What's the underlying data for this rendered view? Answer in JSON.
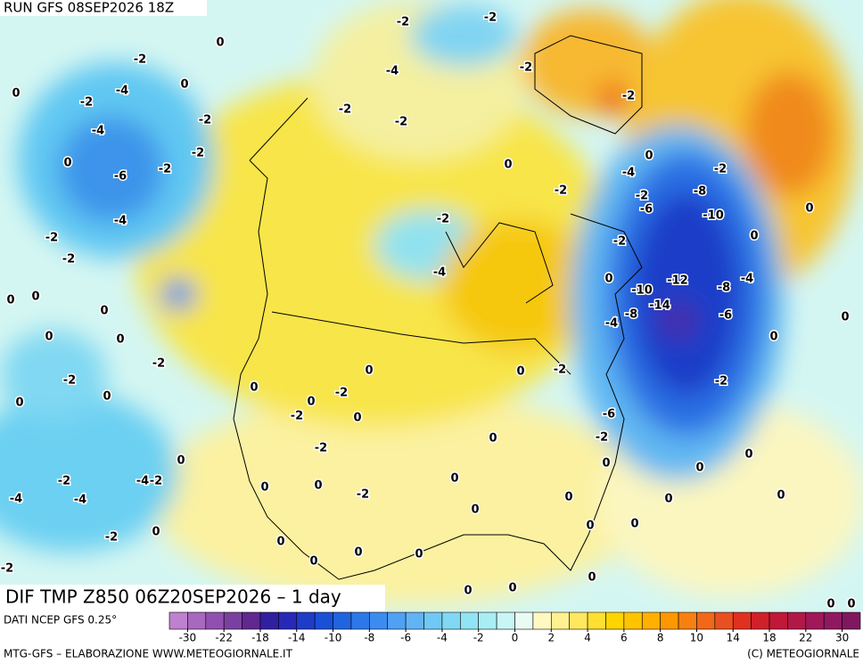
{
  "header": {
    "run": "RUN GFS 08SEP2026 18Z"
  },
  "map": {
    "title": "DIF TMP Z850 06Z20SEP2026 – 1 day",
    "contour_labels": [
      -2,
      -2,
      -2,
      -4,
      0,
      0,
      -2,
      -4,
      0,
      -2,
      -4,
      0,
      -2,
      -6,
      -2,
      -4,
      -2,
      -2,
      0,
      0,
      0,
      0,
      0,
      -2,
      -2,
      0,
      0,
      -2,
      -2,
      -2,
      -2,
      -2,
      -4,
      0,
      -2,
      -4,
      0,
      -2,
      -6,
      -8,
      -2,
      -10,
      -2,
      0,
      -10,
      -12,
      -14,
      -8,
      -4,
      -8,
      -4,
      -6,
      0,
      0,
      0,
      0,
      -2,
      -2,
      0,
      0,
      -2,
      -2,
      0,
      0,
      0,
      -2,
      0,
      -6,
      -2,
      0,
      -2,
      -4,
      -4,
      -4,
      -2,
      -2,
      0,
      0,
      0,
      -2,
      0,
      0,
      0,
      0,
      0,
      0,
      0,
      0,
      0,
      0,
      -2,
      0,
      0,
      0,
      0,
      0,
      0,
      0,
      0,
      0
    ]
  },
  "legend": {
    "source": "DATI NCEP GFS 0.25°",
    "ticks": [
      -30,
      -22,
      -18,
      -14,
      -10,
      -8,
      -6,
      -4,
      -2,
      0,
      2,
      4,
      6,
      8,
      10,
      14,
      18,
      22,
      30
    ],
    "colors": [
      "#c080d0",
      "#a868c0",
      "#9050b0",
      "#7a40a0",
      "#602890",
      "#3020a0",
      "#2828b8",
      "#1e3cc8",
      "#1a50d8",
      "#2064e0",
      "#2c78e8",
      "#3c8cf0",
      "#50a0f4",
      "#60b4f4",
      "#70c8f4",
      "#80d8f4",
      "#90e4f4",
      "#a8eef4",
      "#c8f6f4",
      "#e8fcf4",
      "#fff8c0",
      "#fff090",
      "#ffe860",
      "#ffe030",
      "#ffd400",
      "#ffc400",
      "#ffb000",
      "#ff9800",
      "#f88010",
      "#f06818",
      "#e85020",
      "#e03020",
      "#d02028",
      "#c01838",
      "#b01848",
      "#a01858",
      "#901860",
      "#801860"
    ]
  },
  "footer": {
    "left": "MTG-GFS – ELABORAZIONE WWW.METEOGIORNALE.IT",
    "right": "(C) METEOGIORNALE"
  }
}
